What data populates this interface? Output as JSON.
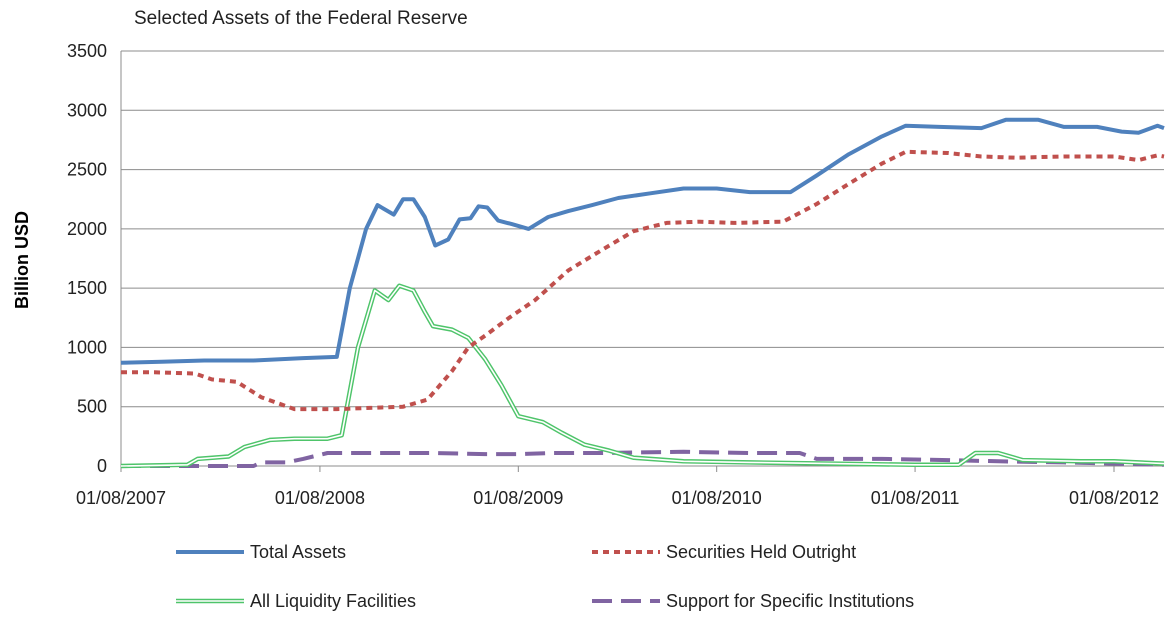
{
  "chart_data": {
    "type": "line",
    "title": "Selected Assets of the Federal Reserve",
    "xlabel": "",
    "ylabel": "Billion USD",
    "ylim": [
      0,
      3500
    ],
    "yticks": [
      0,
      500,
      1000,
      1500,
      2000,
      2500,
      3000,
      3500
    ],
    "xlim": [
      "2007-08-01",
      "2012-11-01"
    ],
    "xticks": [
      "2007-08-01",
      "2008-08-01",
      "2009-08-01",
      "2010-08-01",
      "2011-08-01",
      "2012-08-01"
    ],
    "xtick_labels": [
      "01/08/2007",
      "01/08/2008",
      "01/08/2009",
      "01/08/2010",
      "01/08/2011",
      "01/08/2012"
    ],
    "grid": "horizontal",
    "legend_position": "bottom",
    "series": [
      {
        "name": "Total Assets",
        "color": "#4f81bd",
        "style": "solid",
        "points": [
          [
            "2007-08-01",
            870
          ],
          [
            "2007-10-15",
            880
          ],
          [
            "2008-01-01",
            890
          ],
          [
            "2008-04-01",
            890
          ],
          [
            "2008-07-01",
            910
          ],
          [
            "2008-09-01",
            920
          ],
          [
            "2008-09-25",
            1500
          ],
          [
            "2008-10-25",
            2000
          ],
          [
            "2008-11-15",
            2200
          ],
          [
            "2008-12-15",
            2120
          ],
          [
            "2009-01-01",
            2250
          ],
          [
            "2009-01-20",
            2250
          ],
          [
            "2009-02-10",
            2100
          ],
          [
            "2009-03-01",
            1860
          ],
          [
            "2009-03-25",
            1910
          ],
          [
            "2009-04-15",
            2080
          ],
          [
            "2009-05-05",
            2090
          ],
          [
            "2009-05-20",
            2190
          ],
          [
            "2009-06-05",
            2180
          ],
          [
            "2009-06-25",
            2070
          ],
          [
            "2009-07-20",
            2040
          ],
          [
            "2009-08-20",
            2000
          ],
          [
            "2009-09-25",
            2100
          ],
          [
            "2009-11-01",
            2150
          ],
          [
            "2009-12-15",
            2200
          ],
          [
            "2010-02-01",
            2260
          ],
          [
            "2010-04-01",
            2300
          ],
          [
            "2010-06-01",
            2340
          ],
          [
            "2010-08-01",
            2340
          ],
          [
            "2010-10-01",
            2310
          ],
          [
            "2010-12-15",
            2310
          ],
          [
            "2011-02-01",
            2450
          ],
          [
            "2011-04-01",
            2630
          ],
          [
            "2011-06-01",
            2780
          ],
          [
            "2011-07-15",
            2870
          ],
          [
            "2011-09-15",
            2860
          ],
          [
            "2011-12-01",
            2850
          ],
          [
            "2012-01-15",
            2920
          ],
          [
            "2012-03-15",
            2920
          ],
          [
            "2012-05-01",
            2860
          ],
          [
            "2012-07-01",
            2860
          ],
          [
            "2012-08-15",
            2820
          ],
          [
            "2012-09-15",
            2810
          ],
          [
            "2012-10-20",
            2870
          ],
          [
            "2012-11-01",
            2850
          ]
        ]
      },
      {
        "name": "Securities Held Outright",
        "color": "#c0504d",
        "style": "dotted",
        "points": [
          [
            "2007-08-01",
            790
          ],
          [
            "2007-10-01",
            790
          ],
          [
            "2007-12-15",
            780
          ],
          [
            "2008-01-15",
            730
          ],
          [
            "2008-03-01",
            710
          ],
          [
            "2008-04-15",
            580
          ],
          [
            "2008-06-15",
            480
          ],
          [
            "2008-09-01",
            480
          ],
          [
            "2008-11-01",
            490
          ],
          [
            "2009-01-01",
            500
          ],
          [
            "2009-02-15",
            560
          ],
          [
            "2009-04-01",
            800
          ],
          [
            "2009-05-01",
            1000
          ],
          [
            "2009-06-01",
            1100
          ],
          [
            "2009-07-15",
            1250
          ],
          [
            "2009-09-01",
            1400
          ],
          [
            "2009-11-01",
            1650
          ],
          [
            "2010-01-01",
            1820
          ],
          [
            "2010-03-01",
            1980
          ],
          [
            "2010-05-01",
            2050
          ],
          [
            "2010-07-01",
            2060
          ],
          [
            "2010-09-01",
            2050
          ],
          [
            "2010-12-01",
            2060
          ],
          [
            "2011-02-01",
            2210
          ],
          [
            "2011-04-01",
            2380
          ],
          [
            "2011-06-01",
            2550
          ],
          [
            "2011-07-15",
            2650
          ],
          [
            "2011-10-01",
            2640
          ],
          [
            "2011-12-01",
            2610
          ],
          [
            "2012-02-01",
            2600
          ],
          [
            "2012-05-01",
            2610
          ],
          [
            "2012-08-01",
            2610
          ],
          [
            "2012-09-15",
            2580
          ],
          [
            "2012-10-20",
            2620
          ],
          [
            "2012-11-01",
            2610
          ]
        ]
      },
      {
        "name": "All Liquidity Facilities",
        "color": "#4ec46a",
        "style": "double",
        "points": [
          [
            "2007-08-01",
            0
          ],
          [
            "2007-12-01",
            10
          ],
          [
            "2007-12-20",
            60
          ],
          [
            "2008-02-15",
            80
          ],
          [
            "2008-03-15",
            160
          ],
          [
            "2008-05-01",
            220
          ],
          [
            "2008-06-15",
            230
          ],
          [
            "2008-08-15",
            230
          ],
          [
            "2008-09-10",
            260
          ],
          [
            "2008-10-10",
            1000
          ],
          [
            "2008-11-10",
            1480
          ],
          [
            "2008-12-05",
            1400
          ],
          [
            "2008-12-25",
            1520
          ],
          [
            "2009-01-20",
            1480
          ],
          [
            "2009-02-10",
            1300
          ],
          [
            "2009-02-25",
            1180
          ],
          [
            "2009-04-01",
            1150
          ],
          [
            "2009-05-01",
            1080
          ],
          [
            "2009-06-01",
            900
          ],
          [
            "2009-07-01",
            680
          ],
          [
            "2009-08-01",
            420
          ],
          [
            "2009-09-15",
            370
          ],
          [
            "2009-10-20",
            280
          ],
          [
            "2009-12-01",
            180
          ],
          [
            "2010-01-15",
            130
          ],
          [
            "2010-03-01",
            70
          ],
          [
            "2010-06-01",
            40
          ],
          [
            "2010-10-01",
            30
          ],
          [
            "2011-03-01",
            20
          ],
          [
            "2011-08-01",
            10
          ],
          [
            "2011-10-20",
            10
          ],
          [
            "2011-11-20",
            110
          ],
          [
            "2012-01-01",
            110
          ],
          [
            "2012-02-15",
            50
          ],
          [
            "2012-06-01",
            40
          ],
          [
            "2012-08-01",
            40
          ],
          [
            "2012-11-01",
            20
          ]
        ]
      },
      {
        "name": "Support for Specific Institutions",
        "color": "#8064a2",
        "style": "dashed",
        "points": [
          [
            "2007-08-01",
            0
          ],
          [
            "2008-02-01",
            0
          ],
          [
            "2008-04-01",
            0
          ],
          [
            "2008-04-15",
            30
          ],
          [
            "2008-06-01",
            30
          ],
          [
            "2008-07-01",
            60
          ],
          [
            "2008-08-15",
            110
          ],
          [
            "2009-01-01",
            110
          ],
          [
            "2009-03-01",
            110
          ],
          [
            "2009-06-01",
            100
          ],
          [
            "2009-08-01",
            100
          ],
          [
            "2009-10-01",
            110
          ],
          [
            "2010-01-01",
            110
          ],
          [
            "2010-06-01",
            120
          ],
          [
            "2010-10-01",
            110
          ],
          [
            "2011-01-01",
            110
          ],
          [
            "2011-02-01",
            60
          ],
          [
            "2011-06-01",
            60
          ],
          [
            "2011-10-01",
            50
          ],
          [
            "2012-01-01",
            40
          ],
          [
            "2012-05-01",
            30
          ],
          [
            "2012-11-01",
            10
          ]
        ]
      }
    ]
  }
}
